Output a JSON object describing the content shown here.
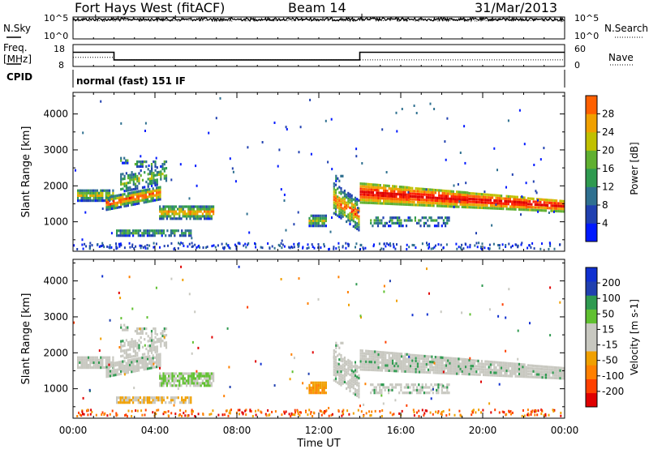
{
  "header": {
    "station": "Fort Hays West (fitACF)",
    "beam": "Beam 14",
    "date": "31/Mar/2013"
  },
  "noise_panel": {
    "left_label": "N.Sky",
    "right_label": "N.Search",
    "left_ticks": [
      "10^5",
      "10^0"
    ],
    "right_ticks": [
      "10^5",
      "10^0"
    ]
  },
  "freq_panel": {
    "left_label_1": "Freq.",
    "left_label_2": "[MHz]",
    "right_label": "Nave",
    "left_ticks": [
      "18",
      "8"
    ],
    "right_ticks": [
      "60",
      "0"
    ],
    "cpid_label": "CPID",
    "cpid_text": "normal (fast) 151 IF"
  },
  "colors": {
    "power_scale": [
      "#0019ff",
      "#2040b0",
      "#2f7090",
      "#2f9a50",
      "#60b030",
      "#c0c000",
      "#f0a000",
      "#ff6000",
      "#ff2000",
      "#e00000"
    ],
    "velocity_scale": [
      "#e00000",
      "#ff4000",
      "#ff8000",
      "#f0a000",
      "#c8c8c0",
      "#c8c8c0",
      "#60c030",
      "#2f9a50",
      "#2040b0",
      "#1030d0"
    ]
  },
  "chart_data": [
    {
      "type": "line",
      "title": "Fort Hays West (fitACF) Beam 14 31/Mar/2013",
      "series": [
        {
          "name": "N.Sky",
          "x": [
            "00:00",
            "24:00"
          ],
          "values": [
            30000,
            30000
          ]
        },
        {
          "name": "N.Search",
          "x": [
            "00:00",
            "24:00"
          ],
          "values": [
            30000,
            30000
          ]
        }
      ],
      "ylim": [
        1,
        100000
      ],
      "log_scale": true
    },
    {
      "type": "line",
      "series": [
        {
          "name": "Freq. [MHz]",
          "x": [
            "00:00",
            "02:00",
            "02:00",
            "14:00",
            "14:00",
            "24:00"
          ],
          "values": [
            14.5,
            14.5,
            11,
            11,
            14.5,
            14.5
          ]
        },
        {
          "name": "Nave",
          "x": [
            "00:00",
            "02:00",
            "02:00",
            "24:00"
          ],
          "values": [
            25,
            25,
            18,
            18
          ]
        }
      ],
      "ylim_left": [
        8,
        18
      ],
      "ylim_right": [
        0,
        60
      ]
    },
    {
      "type": "heatmap",
      "xlabel": "",
      "ylabel": "Slant Range [km]",
      "x_ticks": [
        "00:00",
        "04:00",
        "08:00",
        "12:00",
        "16:00",
        "20:00",
        "00:00"
      ],
      "y_ticks": [
        1000,
        2000,
        3000,
        4000
      ],
      "ylim": [
        180,
        4600
      ],
      "xlim_hours": [
        0,
        24
      ],
      "colorbar": {
        "label": "Power [dB]",
        "ticks": [
          4,
          8,
          12,
          16,
          20,
          24,
          28
        ],
        "range": [
          0,
          32
        ]
      }
    },
    {
      "type": "heatmap",
      "xlabel": "Time UT",
      "ylabel": "Slant Range [km]",
      "x_ticks": [
        "00:00",
        "04:00",
        "08:00",
        "12:00",
        "16:00",
        "20:00",
        "00:00"
      ],
      "y_ticks": [
        1000,
        2000,
        3000,
        4000
      ],
      "ylim": [
        180,
        4600
      ],
      "xlim_hours": [
        0,
        24
      ],
      "colorbar": {
        "label": "Velocity [m s-1]",
        "ticks": [
          "200",
          "100",
          "50",
          "15",
          "-15",
          "-50",
          "-100",
          "-200"
        ]
      }
    }
  ]
}
